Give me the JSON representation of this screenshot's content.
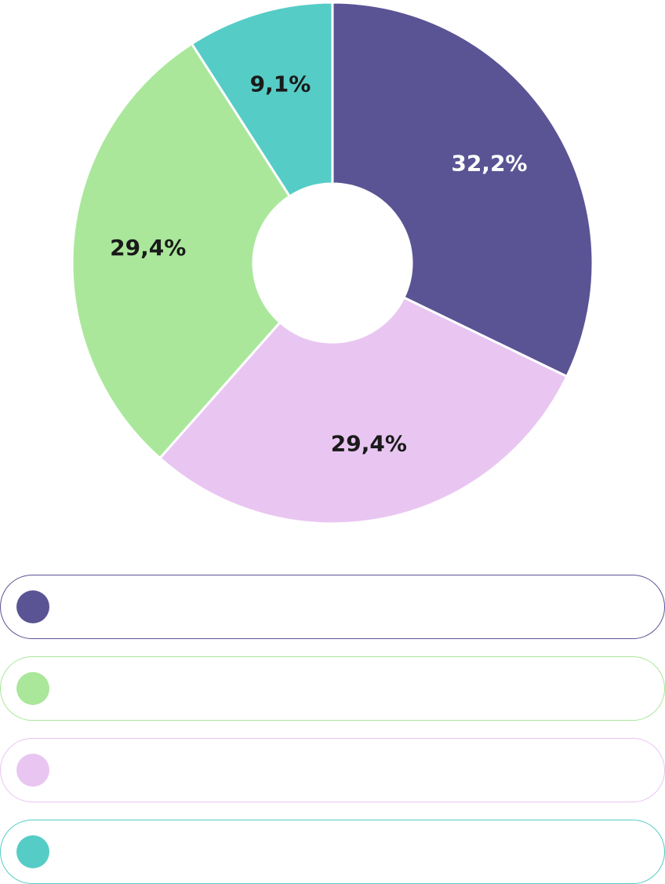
{
  "chart_data": {
    "type": "pie",
    "donut": true,
    "slices": [
      {
        "label": "32,2%",
        "value": 32.2,
        "color": "#5a5494",
        "label_color": "#ffffff"
      },
      {
        "label": "29,4%",
        "value": 29.4,
        "color": "#e9c6f1",
        "label_color": "#1a1a1a"
      },
      {
        "label": "29,4%",
        "value": 29.4,
        "color": "#aae79b",
        "label_color": "#1a1a1a"
      },
      {
        "label": "9,1%",
        "value": 9.1,
        "color": "#56ccc6",
        "label_color": "#1a1a1a"
      }
    ]
  },
  "legend": {
    "items": [
      {
        "text": "",
        "color": "#5a5494"
      },
      {
        "text": "",
        "color": "#aae79b"
      },
      {
        "text": "",
        "color": "#e9c6f1"
      },
      {
        "text": "",
        "color": "#56ccc6"
      }
    ]
  }
}
